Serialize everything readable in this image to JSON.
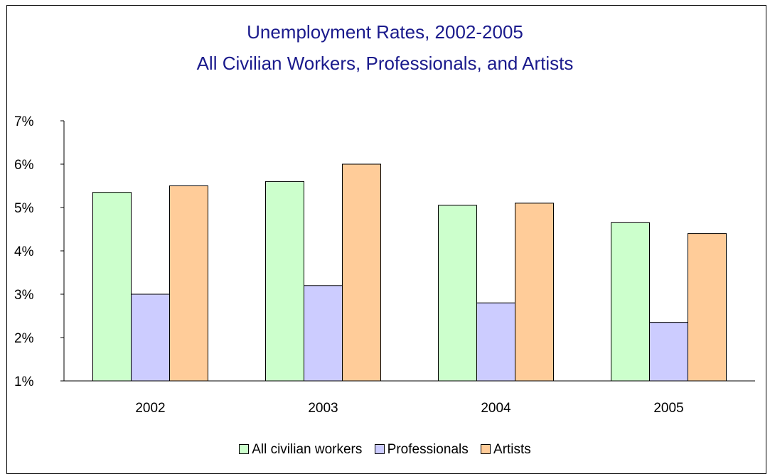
{
  "chart_data": {
    "type": "bar",
    "title": "Unemployment Rates, 2002-2005",
    "subtitle": "All Civilian Workers, Professionals, and Artists",
    "categories": [
      "2002",
      "2003",
      "2004",
      "2005"
    ],
    "series": [
      {
        "name": "All civilian workers",
        "values": [
          5.35,
          5.6,
          5.05,
          4.65
        ],
        "color": "#ccffcc"
      },
      {
        "name": "Professionals",
        "values": [
          3.0,
          3.2,
          2.8,
          2.35
        ],
        "color": "#ccccff"
      },
      {
        "name": "Artists",
        "values": [
          5.5,
          6.0,
          5.1,
          4.4
        ],
        "color": "#ffcc99"
      }
    ],
    "ylim": [
      1,
      7
    ],
    "yticks": [
      {
        "value": 7,
        "label": "7%"
      },
      {
        "value": 6,
        "label": "6%"
      },
      {
        "value": 5,
        "label": "5%"
      },
      {
        "value": 4,
        "label": "4%"
      },
      {
        "value": 3,
        "label": "3%"
      },
      {
        "value": 2,
        "label": "2%"
      },
      {
        "value": 1,
        "label": "1%"
      }
    ],
    "xlabel": "",
    "ylabel": "",
    "grid": false,
    "legend_position": "bottom"
  }
}
